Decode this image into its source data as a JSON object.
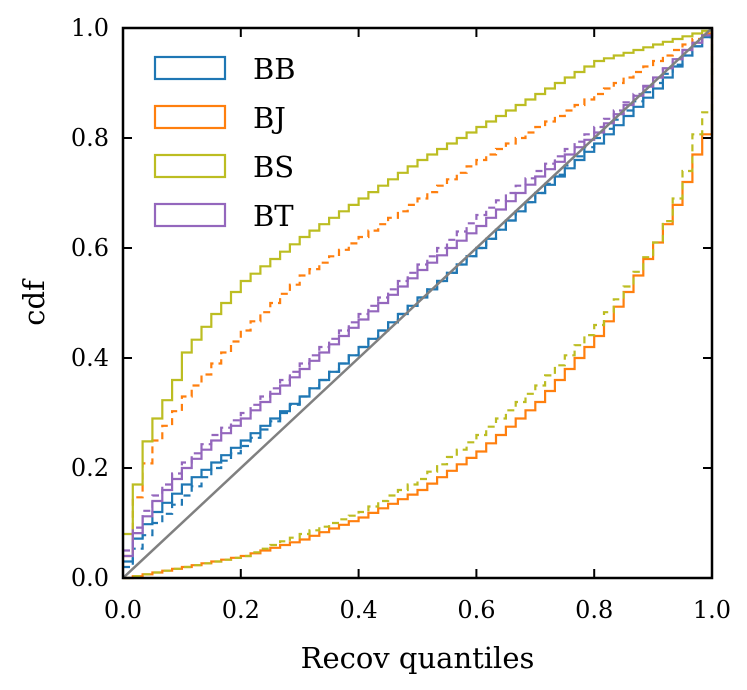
{
  "chart_data": {
    "type": "line",
    "title": "",
    "xlabel": "Recov quantiles",
    "ylabel": "cdf",
    "xlim": [
      0.0,
      1.0
    ],
    "ylim": [
      0.0,
      1.0
    ],
    "xticks": [
      "0.0",
      "0.2",
      "0.4",
      "0.6",
      "0.8",
      "1.0"
    ],
    "yticks": [
      "0.0",
      "0.2",
      "0.4",
      "0.6",
      "0.8",
      "1.0"
    ],
    "grid": false,
    "legend_position": "top-left",
    "reference_line": {
      "name": "identity",
      "x": [
        0,
        1
      ],
      "y": [
        0,
        1
      ],
      "color": "#808080"
    },
    "series": [
      {
        "name": "BB",
        "label": "BB",
        "color": "#1f77b4",
        "style": "solid",
        "x": [
          0.0,
          0.02,
          0.05,
          0.1,
          0.15,
          0.2,
          0.3,
          0.4,
          0.5,
          0.6,
          0.7,
          0.8,
          0.9,
          0.95,
          1.0
        ],
        "y": [
          0.03,
          0.08,
          0.12,
          0.17,
          0.21,
          0.25,
          0.33,
          0.42,
          0.51,
          0.6,
          0.7,
          0.79,
          0.89,
          0.95,
          1.0
        ]
      },
      {
        "name": "BB (dashed)",
        "label": "",
        "color": "#1f77b4",
        "style": "dashed",
        "x": [
          0.0,
          0.02,
          0.05,
          0.1,
          0.15,
          0.2,
          0.3,
          0.4,
          0.5,
          0.6,
          0.7,
          0.8,
          0.9,
          0.95,
          1.0
        ],
        "y": [
          0.02,
          0.06,
          0.1,
          0.15,
          0.2,
          0.24,
          0.33,
          0.42,
          0.51,
          0.6,
          0.7,
          0.8,
          0.9,
          0.95,
          1.0
        ]
      },
      {
        "name": "BJ",
        "label": "BJ",
        "color": "#ff7f0e",
        "style": "solid",
        "x": [
          0.0,
          0.05,
          0.1,
          0.2,
          0.3,
          0.4,
          0.5,
          0.6,
          0.7,
          0.8,
          0.85,
          0.9,
          0.93,
          0.95,
          0.97,
          0.99,
          1.0
        ],
        "y": [
          0.0,
          0.01,
          0.02,
          0.04,
          0.07,
          0.11,
          0.16,
          0.23,
          0.32,
          0.44,
          0.52,
          0.61,
          0.67,
          0.72,
          0.78,
          0.82,
          1.0
        ]
      },
      {
        "name": "BJ (dashed)",
        "label": "",
        "color": "#ff7f0e",
        "style": "dashed",
        "x": [
          0.0,
          0.01,
          0.03,
          0.05,
          0.1,
          0.15,
          0.2,
          0.3,
          0.4,
          0.5,
          0.6,
          0.7,
          0.8,
          0.9,
          0.95,
          1.0
        ],
        "y": [
          0.04,
          0.12,
          0.2,
          0.25,
          0.33,
          0.39,
          0.45,
          0.55,
          0.62,
          0.69,
          0.76,
          0.82,
          0.88,
          0.94,
          0.97,
          1.0
        ]
      },
      {
        "name": "BS",
        "label": "BS",
        "color": "#bcbd22",
        "style": "solid",
        "x": [
          0.0,
          0.01,
          0.02,
          0.03,
          0.05,
          0.08,
          0.1,
          0.15,
          0.2,
          0.25,
          0.3,
          0.4,
          0.5,
          0.6,
          0.7,
          0.8,
          0.9,
          1.0
        ],
        "y": [
          0.08,
          0.13,
          0.19,
          0.24,
          0.29,
          0.35,
          0.41,
          0.48,
          0.54,
          0.58,
          0.62,
          0.69,
          0.76,
          0.82,
          0.88,
          0.94,
          0.97,
          1.0
        ]
      },
      {
        "name": "BS (dashed)",
        "label": "",
        "color": "#bcbd22",
        "style": "dashed",
        "x": [
          0.0,
          0.05,
          0.1,
          0.2,
          0.3,
          0.4,
          0.5,
          0.6,
          0.7,
          0.8,
          0.85,
          0.9,
          0.93,
          0.95,
          0.97,
          0.99,
          1.0
        ],
        "y": [
          0.0,
          0.01,
          0.02,
          0.04,
          0.08,
          0.12,
          0.18,
          0.26,
          0.35,
          0.46,
          0.53,
          0.61,
          0.68,
          0.74,
          0.82,
          0.86,
          1.0
        ]
      },
      {
        "name": "BT",
        "label": "BT",
        "color": "#9467bd",
        "style": "solid",
        "x": [
          0.0,
          0.02,
          0.05,
          0.1,
          0.15,
          0.2,
          0.3,
          0.4,
          0.5,
          0.6,
          0.7,
          0.8,
          0.9,
          0.95,
          1.0
        ],
        "y": [
          0.04,
          0.09,
          0.14,
          0.2,
          0.25,
          0.29,
          0.38,
          0.47,
          0.56,
          0.64,
          0.73,
          0.81,
          0.91,
          0.96,
          1.0
        ]
      },
      {
        "name": "BT (dashed)",
        "label": "",
        "color": "#9467bd",
        "style": "dashed",
        "x": [
          0.0,
          0.02,
          0.05,
          0.1,
          0.15,
          0.2,
          0.3,
          0.4,
          0.5,
          0.6,
          0.7,
          0.8,
          0.9,
          0.95,
          1.0
        ],
        "y": [
          0.05,
          0.1,
          0.15,
          0.21,
          0.26,
          0.3,
          0.39,
          0.48,
          0.57,
          0.66,
          0.74,
          0.82,
          0.91,
          0.96,
          1.0
        ]
      }
    ]
  }
}
